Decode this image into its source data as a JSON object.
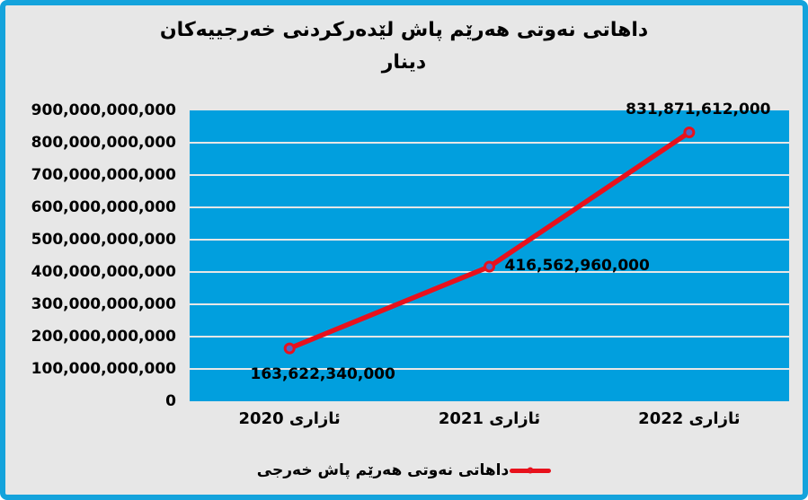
{
  "title": {
    "line1": "داهاتی نەوتی هەرێم پاش لێدەرکردنی خەرجییەکان",
    "line2": "دینار"
  },
  "legend": {
    "label": "داهاتی نەوتی هەرێم پاش خەرجی"
  },
  "colors": {
    "frame_border": "#14A3DC",
    "page_bg": "#E7E7E7",
    "plot_bg": "#019FDE",
    "gridline": "#E7E7E7",
    "line": "#E8111C",
    "marker_fill": "#4E66C8",
    "text": "#000000"
  },
  "chart_data": {
    "type": "line",
    "title": "داهاتی نەوتی هەرێم پاش لێدەرکردنی خەرجییەکان دینار",
    "categories": [
      "ئازاری 2020",
      "ئازاری 2021",
      "ئازاری 2022"
    ],
    "series": [
      {
        "name": "داهاتی نەوتی هەرێم پاش خەرجی",
        "values": [
          163622340000,
          416562960000,
          831871612000
        ]
      }
    ],
    "value_labels": [
      "163,622,340,000",
      "416,562,960,000",
      "831,871,612,000"
    ],
    "y_tick_values": [
      0,
      100000000000,
      200000000000,
      300000000000,
      400000000000,
      500000000000,
      600000000000,
      700000000000,
      800000000000,
      900000000000
    ],
    "y_tick_labels": [
      "0",
      "100,000,000,000",
      "200,000,000,000",
      "300,000,000,000",
      "400,000,000,000",
      "500,000,000,000",
      "600,000,000,000",
      "700,000,000,000",
      "800,000,000,000",
      "900,000,000,000"
    ],
    "ylim": [
      0,
      900000000000
    ],
    "grid": "horizontal",
    "legend_position": "bottom",
    "label_positions": [
      "below-right",
      "right",
      "above"
    ],
    "xlabel": "",
    "ylabel": ""
  }
}
